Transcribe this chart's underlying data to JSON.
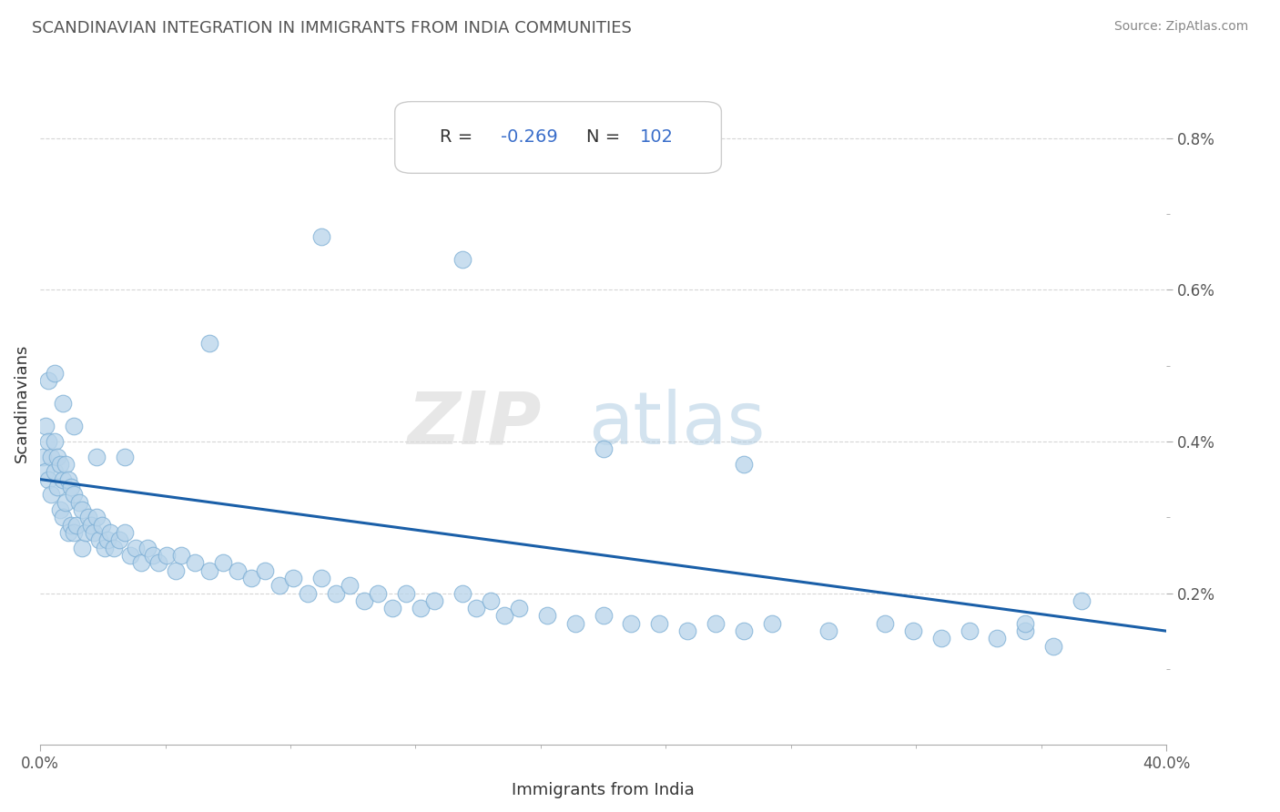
{
  "title": "SCANDINAVIAN INTEGRATION IN IMMIGRANTS FROM INDIA COMMUNITIES",
  "source": "Source: ZipAtlas.com",
  "xlabel": "Immigrants from India",
  "ylabel": "Scandinavians",
  "xlim": [
    0.0,
    0.4
  ],
  "ylim": [
    0.0,
    0.009
  ],
  "R_value": "-0.269",
  "N_value": "102",
  "scatter_color": "#b8d4ea",
  "scatter_edge_color": "#7aadd4",
  "line_color": "#1a5fa8",
  "title_color": "#222222",
  "source_color": "#666666",
  "axis_label_color": "#333333",
  "tick_color": "#555555",
  "grid_color": "#cccccc",
  "stat_text_color": "#333333",
  "stat_value_color": "#3a6eca",
  "line_y_start": 0.0035,
  "line_y_end": 0.0015,
  "points_x": [
    0.001,
    0.002,
    0.002,
    0.003,
    0.003,
    0.004,
    0.004,
    0.005,
    0.005,
    0.006,
    0.006,
    0.007,
    0.007,
    0.008,
    0.008,
    0.009,
    0.009,
    0.01,
    0.01,
    0.011,
    0.011,
    0.012,
    0.012,
    0.013,
    0.014,
    0.015,
    0.015,
    0.016,
    0.017,
    0.018,
    0.019,
    0.02,
    0.021,
    0.022,
    0.023,
    0.024,
    0.025,
    0.026,
    0.028,
    0.03,
    0.032,
    0.034,
    0.036,
    0.038,
    0.04,
    0.042,
    0.045,
    0.048,
    0.05,
    0.055,
    0.06,
    0.065,
    0.07,
    0.075,
    0.08,
    0.085,
    0.09,
    0.095,
    0.1,
    0.105,
    0.11,
    0.115,
    0.12,
    0.125,
    0.13,
    0.135,
    0.14,
    0.15,
    0.155,
    0.16,
    0.165,
    0.17,
    0.18,
    0.19,
    0.2,
    0.21,
    0.22,
    0.23,
    0.24,
    0.25,
    0.26,
    0.28,
    0.3,
    0.31,
    0.32,
    0.33,
    0.34,
    0.35,
    0.36,
    0.37,
    0.003,
    0.005,
    0.008,
    0.012,
    0.02,
    0.03,
    0.06,
    0.1,
    0.15,
    0.2,
    0.25,
    0.35
  ],
  "points_y": [
    0.0038,
    0.0042,
    0.0036,
    0.004,
    0.0035,
    0.0038,
    0.0033,
    0.004,
    0.0036,
    0.0038,
    0.0034,
    0.0037,
    0.0031,
    0.0035,
    0.003,
    0.0037,
    0.0032,
    0.0035,
    0.0028,
    0.0034,
    0.0029,
    0.0033,
    0.0028,
    0.0029,
    0.0032,
    0.0031,
    0.0026,
    0.0028,
    0.003,
    0.0029,
    0.0028,
    0.003,
    0.0027,
    0.0029,
    0.0026,
    0.0027,
    0.0028,
    0.0026,
    0.0027,
    0.0028,
    0.0025,
    0.0026,
    0.0024,
    0.0026,
    0.0025,
    0.0024,
    0.0025,
    0.0023,
    0.0025,
    0.0024,
    0.0023,
    0.0024,
    0.0023,
    0.0022,
    0.0023,
    0.0021,
    0.0022,
    0.002,
    0.0022,
    0.002,
    0.0021,
    0.0019,
    0.002,
    0.0018,
    0.002,
    0.0018,
    0.0019,
    0.002,
    0.0018,
    0.0019,
    0.0017,
    0.0018,
    0.0017,
    0.0016,
    0.0017,
    0.0016,
    0.0016,
    0.0015,
    0.0016,
    0.0015,
    0.0016,
    0.0015,
    0.0016,
    0.0015,
    0.0014,
    0.0015,
    0.0014,
    0.0015,
    0.0013,
    0.0019,
    0.0048,
    0.0049,
    0.0045,
    0.0042,
    0.0038,
    0.0038,
    0.0053,
    0.0067,
    0.0064,
    0.0039,
    0.0037,
    0.0016
  ]
}
